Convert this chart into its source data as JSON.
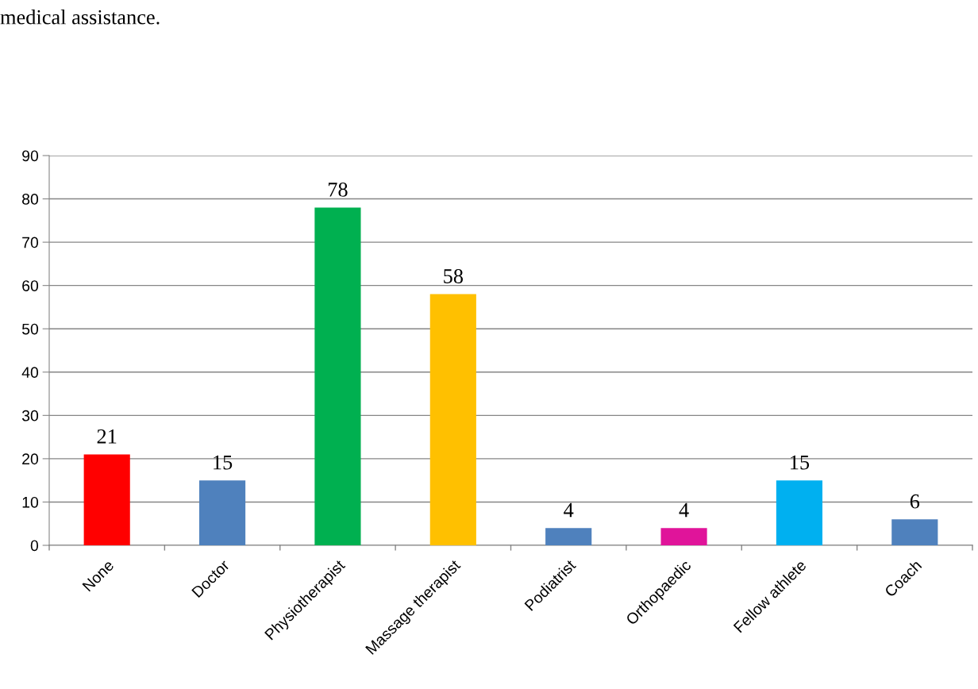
{
  "chart_data": {
    "type": "bar",
    "categories": [
      "None",
      "Doctor",
      "Physiotherapist",
      "Massage therapist",
      "Podiatrist",
      "Orthopaedic",
      "Fellow athlete",
      "Coach"
    ],
    "values": [
      21,
      15,
      78,
      58,
      4,
      4,
      15,
      6
    ],
    "colors": [
      "#ff0000",
      "#4f81bd",
      "#00b050",
      "#ffc000",
      "#4f81bd",
      "#e0149a",
      "#00b0f0",
      "#4f81bd"
    ],
    "ylim": [
      0,
      90
    ],
    "yticks": [
      0,
      10,
      20,
      30,
      40,
      50,
      60,
      70,
      80,
      90
    ],
    "grid": "y",
    "data_labels": true,
    "annotations": [
      "medical assistance."
    ]
  }
}
